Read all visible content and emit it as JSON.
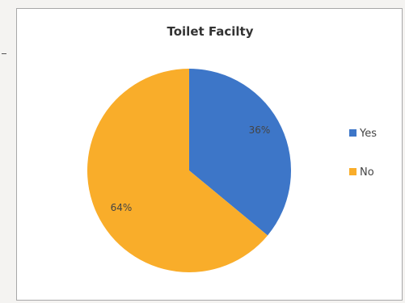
{
  "chart_data": {
    "type": "pie",
    "title": "Toilet Facilty",
    "categories": [
      "Yes",
      "No"
    ],
    "values": [
      36,
      64
    ],
    "labels": [
      "36%",
      "64%"
    ],
    "colors": [
      "#3d76c8",
      "#f9ad2a"
    ],
    "legend_position": "right"
  }
}
